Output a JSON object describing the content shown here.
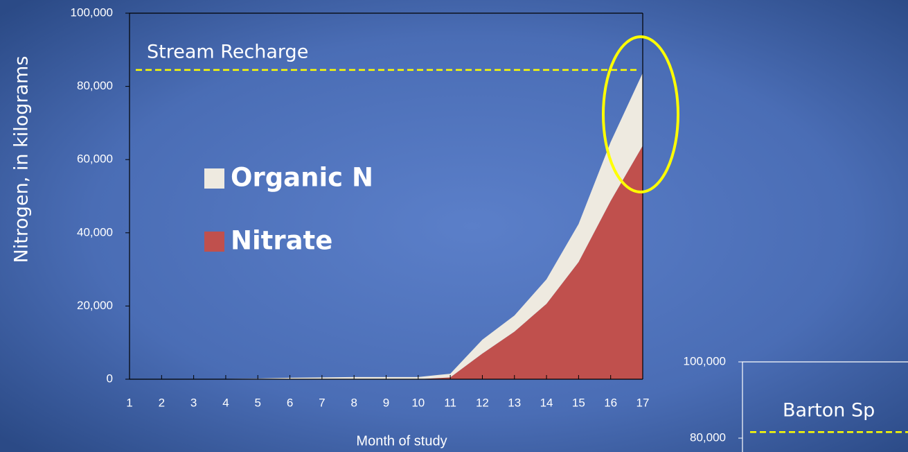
{
  "chart_data": [
    {
      "type": "stacked_area",
      "y_axis_label": "Nitrogen, in kilograms",
      "x_axis_label": "Month of study",
      "x": [
        1,
        2,
        3,
        4,
        5,
        6,
        7,
        8,
        9,
        10,
        11,
        12,
        13,
        14,
        15,
        16,
        17
      ],
      "xlim": [
        1,
        17
      ],
      "xticks": [
        1,
        2,
        3,
        4,
        5,
        6,
        7,
        8,
        9,
        10,
        11,
        12,
        13,
        14,
        15,
        16,
        17
      ],
      "ylim": [
        0,
        100000
      ],
      "yticks": [
        0,
        {
          "value": 20000,
          "label": "20,000"
        },
        {
          "value": 40000,
          "label": "40,000"
        },
        {
          "value": 60000,
          "label": "60,000"
        },
        {
          "value": 80000,
          "label": "80,000"
        },
        {
          "value": 100000,
          "label": "100,000"
        }
      ],
      "series": [
        {
          "name": "Nitrate",
          "color": "#c0504d",
          "values": [
            0,
            0,
            0,
            0,
            0,
            0,
            0,
            0,
            0,
            0,
            500,
            7000,
            13000,
            20600,
            32000,
            48700,
            63800
          ]
        },
        {
          "name": "Organic N",
          "color": "#eeeae0",
          "values": [
            0,
            0,
            0,
            100,
            200,
            400,
            500,
            600,
            600,
            600,
            1000,
            3800,
            4400,
            6700,
            10400,
            16100,
            19900
          ]
        }
      ],
      "reference_line": {
        "label": "Stream Recharge",
        "value": 84500,
        "color": "#ffff00"
      }
    },
    {
      "type": "line",
      "ylim": [
        80000,
        100000
      ],
      "yticks": [
        {
          "value": 80000,
          "label": "80,000"
        },
        {
          "value": 100000,
          "label": "100,000"
        }
      ],
      "reference_line": {
        "label": "Barton Sp",
        "value": 81600,
        "color": "#ffff00"
      }
    }
  ]
}
